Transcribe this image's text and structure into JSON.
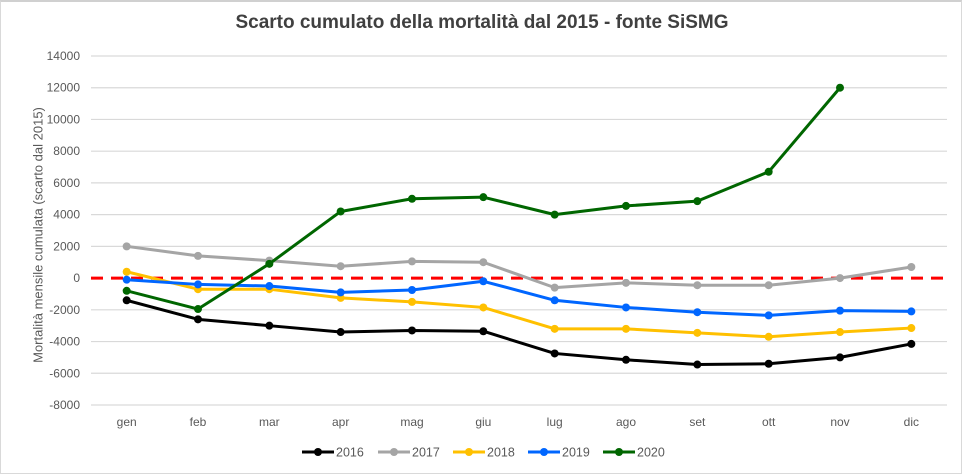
{
  "chart_data": {
    "type": "line",
    "title": "Scarto cumulato della mortalità dal 2015 - fonte SiSMG",
    "xlabel": "",
    "ylabel": "Mortalità mensile cumulata (scarto dal 2015)",
    "ylim": [
      -8000,
      14000
    ],
    "yticks": [
      14000,
      12000,
      10000,
      8000,
      6000,
      4000,
      2000,
      0,
      -2000,
      -4000,
      -6000,
      -8000
    ],
    "ytick_labels": [
      "14000",
      "12000",
      "10000",
      "8000",
      "6000",
      "4000",
      "2000",
      "0",
      "-2000",
      "-4000",
      "-6000",
      "-8000"
    ],
    "categories": [
      "gen",
      "feb",
      "mar",
      "apr",
      "mag",
      "giu",
      "lug",
      "ago",
      "set",
      "ott",
      "nov",
      "dic"
    ],
    "grid": true,
    "legend_position": "bottom",
    "reference_line": {
      "value": 0,
      "color": "#ff0000",
      "style": "dashed"
    },
    "series": [
      {
        "name": "2016",
        "color": "#000000",
        "values": [
          -1400,
          -2600,
          -3000,
          -3400,
          -3300,
          -3350,
          -4750,
          -5150,
          -5450,
          -5400,
          -5000,
          -4150
        ]
      },
      {
        "name": "2017",
        "color": "#a5a5a5",
        "values": [
          2000,
          1400,
          1100,
          750,
          1050,
          1000,
          -600,
          -300,
          -450,
          -450,
          0,
          700
        ]
      },
      {
        "name": "2018",
        "color": "#ffc000",
        "values": [
          400,
          -700,
          -700,
          -1250,
          -1500,
          -1850,
          -3200,
          -3200,
          -3450,
          -3700,
          -3400,
          -3150
        ]
      },
      {
        "name": "2019",
        "color": "#0066ff",
        "values": [
          -100,
          -400,
          -500,
          -900,
          -750,
          -200,
          -1400,
          -1850,
          -2150,
          -2350,
          -2050,
          -2100
        ]
      },
      {
        "name": "2020",
        "color": "#006600",
        "values": [
          -800,
          -1950,
          900,
          4200,
          5000,
          5100,
          4000,
          4550,
          4850,
          6700,
          12000,
          null
        ]
      }
    ]
  }
}
